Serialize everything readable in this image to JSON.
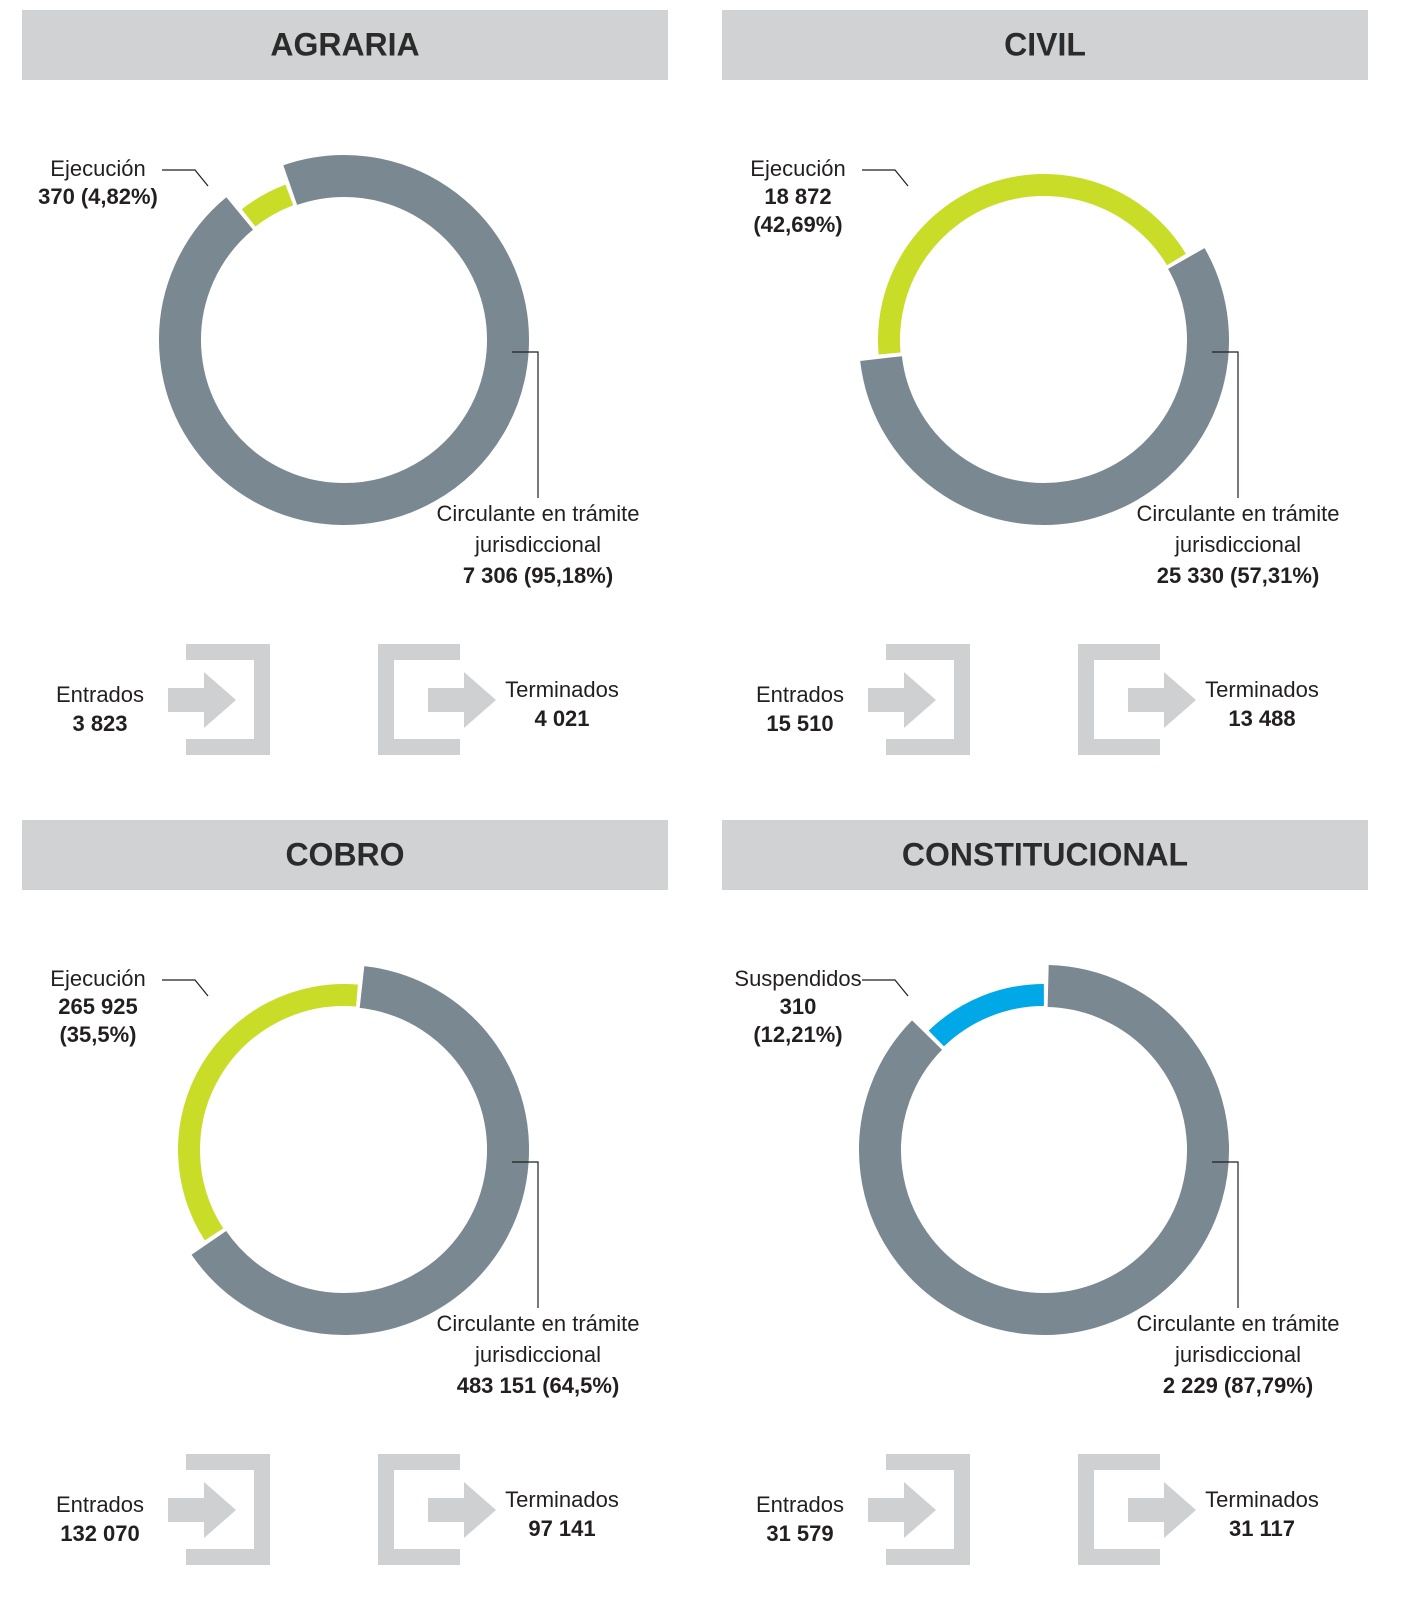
{
  "chart_data": [
    {
      "type": "donut",
      "title": "AGRARIA",
      "categories": [
        "Ejecución",
        "Circulante en trámite jurisdiccional"
      ],
      "values": [
        370,
        7306
      ],
      "value_labels": [
        "370",
        "7 306"
      ],
      "percent_labels": [
        "(4,82%)",
        "(95,18%)"
      ],
      "colors": [
        "#c8dc28",
        "#7a8892"
      ],
      "entrados": {
        "label": "Entrados",
        "value": "3 823"
      },
      "terminados": {
        "label": "Terminados",
        "value": "4 021"
      }
    },
    {
      "type": "donut",
      "title": "CIVIL",
      "categories": [
        "Ejecución",
        "Circulante en trámite jurisdiccional"
      ],
      "values": [
        18872,
        25330
      ],
      "value_labels": [
        "18 872",
        "25 330"
      ],
      "percent_labels": [
        "(42,69%)",
        "(57,31%)"
      ],
      "colors": [
        "#c8dc28",
        "#7a8892"
      ],
      "entrados": {
        "label": "Entrados",
        "value": "15 510"
      },
      "terminados": {
        "label": "Terminados",
        "value": "13 488"
      }
    },
    {
      "type": "donut",
      "title": "COBRO",
      "categories": [
        "Ejecución",
        "Circulante en trámite jurisdiccional"
      ],
      "values": [
        265925,
        483151
      ],
      "value_labels": [
        "265 925",
        "483 151"
      ],
      "percent_labels": [
        "(35,5%)",
        "(64,5%)"
      ],
      "colors": [
        "#c8dc28",
        "#7a8892"
      ],
      "entrados": {
        "label": "Entrados",
        "value": "132 070"
      },
      "terminados": {
        "label": "Terminados",
        "value": "97 141"
      }
    },
    {
      "type": "donut",
      "title": "CONSTITUCIONAL",
      "categories": [
        "Suspendidos",
        "Circulante en trámite jurisdiccional"
      ],
      "values": [
        310,
        2229
      ],
      "value_labels": [
        "310",
        "2 229"
      ],
      "percent_labels": [
        "(12,21%)",
        "(87,79%)"
      ],
      "colors": [
        "#00a8e8",
        "#7a8892"
      ],
      "entrados": {
        "label": "Entrados",
        "value": "31 579"
      },
      "terminados": {
        "label": "Terminados",
        "value": "31 117"
      }
    }
  ]
}
